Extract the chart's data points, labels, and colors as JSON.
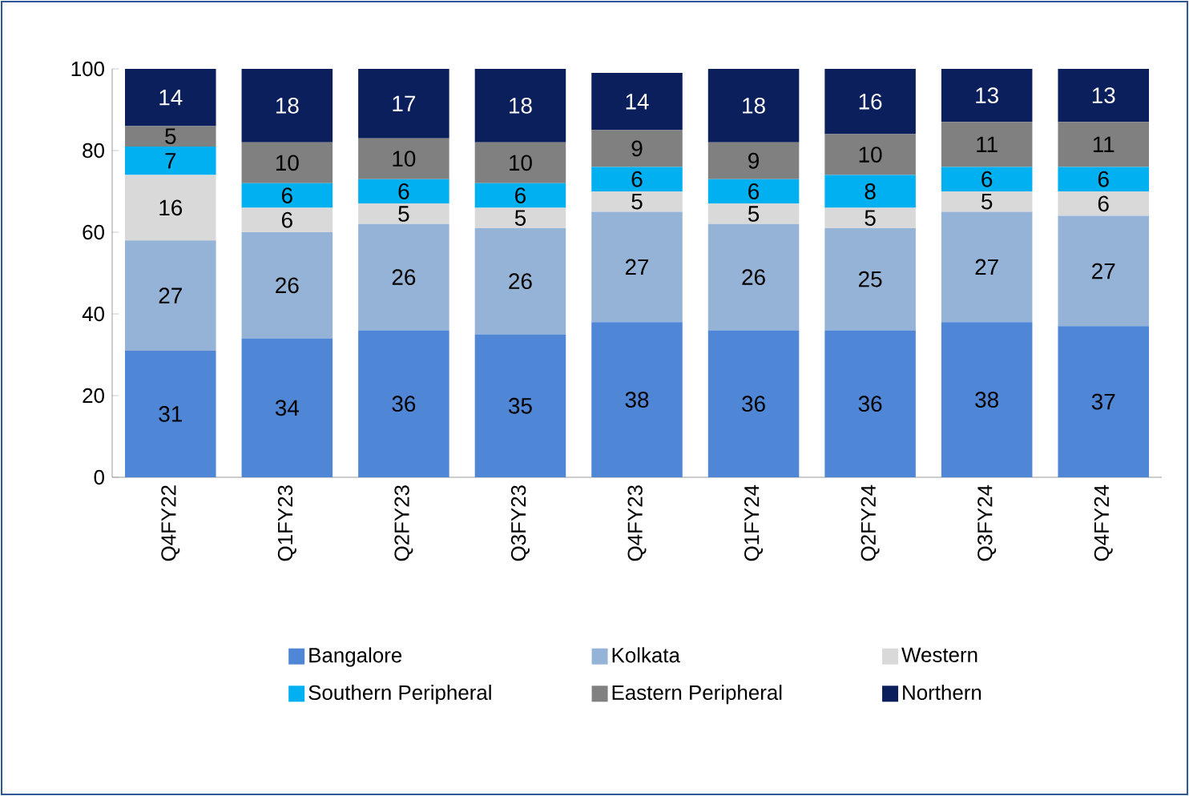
{
  "chart_data": {
    "type": "bar",
    "stacked": true,
    "data_labels": true,
    "legend": "bottom",
    "categories": [
      "Q4FY22",
      "Q1FY23",
      "Q2FY23",
      "Q3FY23",
      "Q4FY23",
      "Q1FY24",
      "Q2FY24",
      "Q3FY24",
      "Q4FY24"
    ],
    "ylim": [
      0,
      100
    ],
    "yticks": [
      0,
      20,
      40,
      60,
      80,
      100
    ],
    "series": [
      {
        "name": "Bangalore",
        "color": "#4f86d6",
        "values": [
          31,
          34,
          36,
          35,
          38,
          36,
          36,
          38,
          37
        ]
      },
      {
        "name": "Kolkata",
        "color": "#95b3d7",
        "values": [
          27,
          26,
          26,
          26,
          27,
          26,
          25,
          27,
          27
        ]
      },
      {
        "name": "Western",
        "color": "#d9d9d9",
        "values": [
          16,
          6,
          5,
          5,
          5,
          5,
          5,
          5,
          6
        ]
      },
      {
        "name": "Southern Peripheral",
        "color": "#00b0f0",
        "values": [
          7,
          6,
          6,
          6,
          6,
          6,
          8,
          6,
          6
        ]
      },
      {
        "name": "Eastern Peripheral",
        "color": "#808080",
        "values": [
          5,
          10,
          10,
          10,
          9,
          9,
          10,
          11,
          11
        ]
      },
      {
        "name": "Northern",
        "color": "#0a1f5c",
        "values": [
          14,
          18,
          17,
          18,
          14,
          18,
          16,
          13,
          13
        ]
      }
    ]
  }
}
